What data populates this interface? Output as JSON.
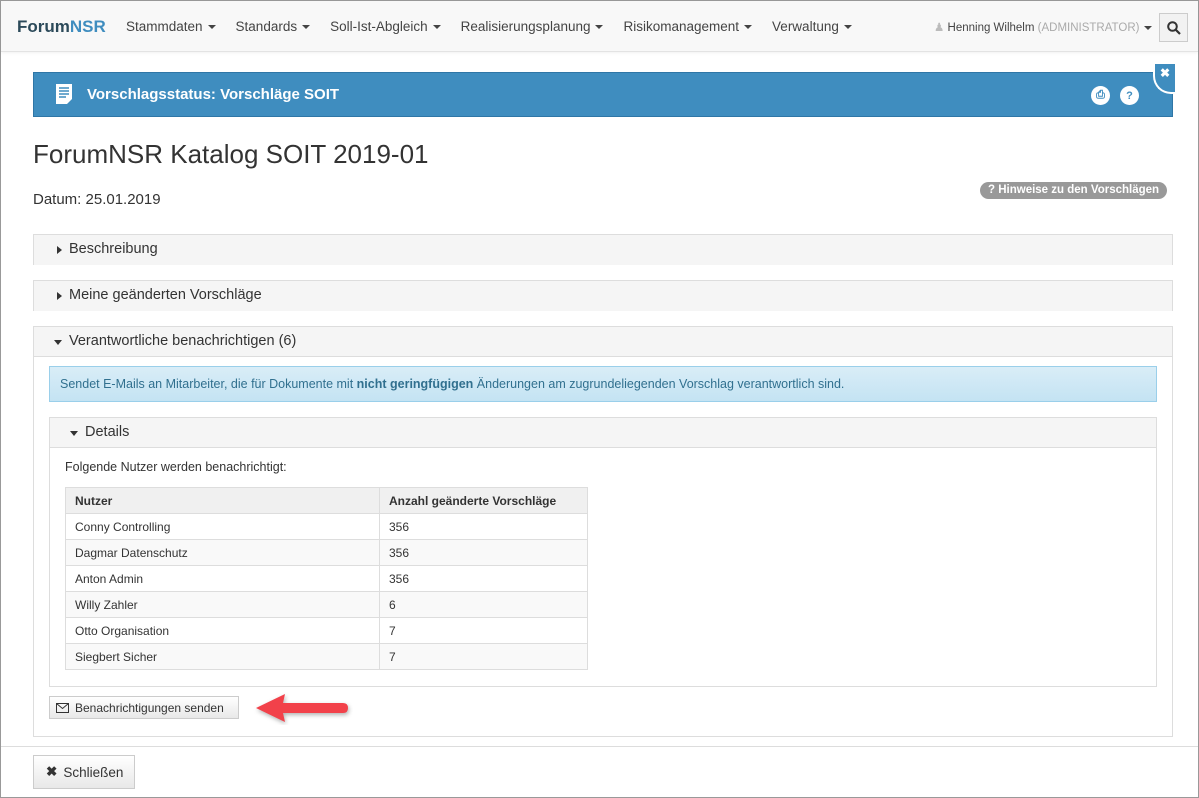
{
  "nav": {
    "brand_a": "Forum",
    "brand_b": "NSR",
    "menu": [
      "Stammdaten",
      "Standards",
      "Soll-Ist-Abgleich",
      "Realisierungsplanung",
      "Risikomanagement",
      "Verwaltung"
    ],
    "user": "Henning Wilhelm",
    "role": "(ADMINISTRATOR)"
  },
  "header": {
    "title": "Vorschlagsstatus: Vorschläge SOIT"
  },
  "page": {
    "title": "ForumNSR Katalog SOIT 2019-01",
    "datum": "Datum: 25.01.2019",
    "hint": "? Hinweise zu den Vorschlägen"
  },
  "panels": {
    "beschreibung": "Beschreibung",
    "meine": "Meine geänderten Vorschläge",
    "verantwortliche": "Verantwortliche benachrichtigen (6)"
  },
  "info": {
    "pre": "Sendet E-Mails an Mitarbeiter, die für Dokumente mit ",
    "bold": "nicht geringfügigen",
    "post": " Änderungen am zugrundeliegenden Vorschlag verantwortlich sind."
  },
  "details": {
    "title": "Details",
    "intro": "Folgende Nutzer werden benachrichtigt:",
    "headers": [
      "Nutzer",
      "Anzahl geänderte Vorschläge"
    ],
    "rows": [
      [
        "Conny Controlling",
        "356"
      ],
      [
        "Dagmar Datenschutz",
        "356"
      ],
      [
        "Anton Admin",
        "356"
      ],
      [
        "Willy Zahler",
        "6"
      ],
      [
        "Otto Organisation",
        "7"
      ],
      [
        "Siegbert Sicher",
        "7"
      ]
    ]
  },
  "send_button": "Benachrichtigungen senden",
  "close_button": "Schließen",
  "colors": {
    "accent": "#3f8dbf",
    "arrow": "#f2414a"
  }
}
